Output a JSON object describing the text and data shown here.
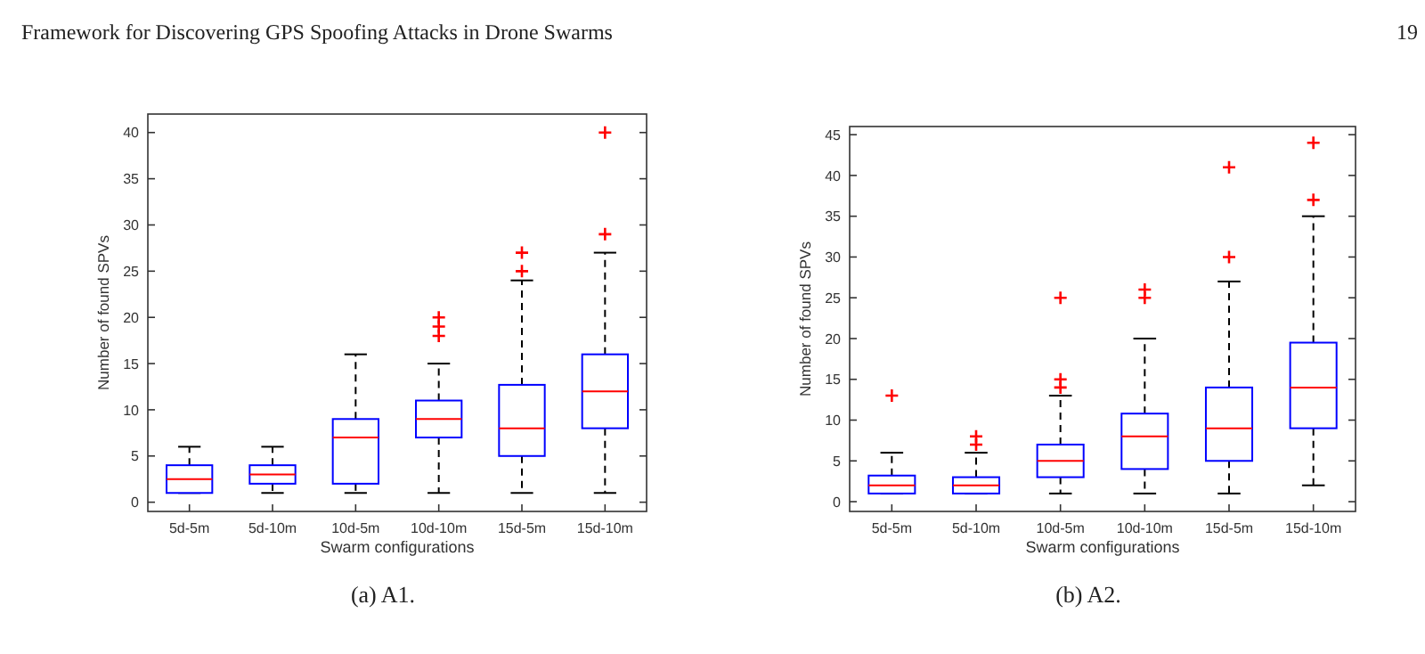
{
  "chart_data": [
    {
      "type": "box",
      "title": "(a) A1.",
      "xlabel": "Swarm configurations",
      "ylabel": "Number of found SPVs",
      "annotations": [
        "Framework for Discovering GPS Spoofing Attacks in Drone Swarms",
        "19"
      ],
      "categories": [
        "5d-5m",
        "5d-10m",
        "10d-5m",
        "10d-10m",
        "15d-5m",
        "15d-10m"
      ],
      "ylim": [
        -1,
        42
      ],
      "yticks": [
        0,
        5,
        10,
        15,
        20,
        25,
        30,
        35,
        40
      ],
      "marker": "cross",
      "boxes": [
        {
          "low": 1,
          "q1": 1,
          "median": 2.5,
          "q3": 4,
          "high": 6
        },
        {
          "low": 1,
          "q1": 2,
          "median": 3,
          "q3": 4,
          "high": 6
        },
        {
          "low": 1,
          "q1": 2,
          "median": 7,
          "q3": 9,
          "high": 16
        },
        {
          "low": 1,
          "q1": 7,
          "median": 9,
          "q3": 11,
          "high": 15,
          "outliers": [
            18,
            19,
            20
          ]
        },
        {
          "low": 1,
          "q1": 5,
          "median": 8,
          "q3": 12.7,
          "high": 24,
          "outliers": [
            25,
            27
          ]
        },
        {
          "low": 1,
          "q1": 8,
          "median": 12,
          "q3": 16,
          "high": 27,
          "outliers": [
            29,
            40
          ]
        }
      ]
    },
    {
      "type": "box",
      "title": "(b) A2.",
      "xlabel": "Swarm configurations",
      "ylabel": "Number of found SPVs",
      "categories": [
        "5d-5m",
        "5d-10m",
        "10d-5m",
        "10d-10m",
        "15d-5m",
        "15d-10m"
      ],
      "ylim": [
        -1.2,
        46
      ],
      "yticks": [
        0,
        5,
        10,
        15,
        20,
        25,
        30,
        35,
        40,
        45
      ],
      "marker": "cross",
      "boxes": [
        {
          "low": 1,
          "q1": 1,
          "median": 2,
          "q3": 3.2,
          "high": 6,
          "outliers": [
            13
          ]
        },
        {
          "low": 1,
          "q1": 1,
          "median": 2,
          "q3": 3,
          "high": 6,
          "outliers": [
            7,
            8
          ]
        },
        {
          "low": 1,
          "q1": 3,
          "median": 5,
          "q3": 7,
          "high": 13,
          "outliers": [
            14,
            15,
            25
          ]
        },
        {
          "low": 1,
          "q1": 4,
          "median": 8,
          "q3": 10.8,
          "high": 20,
          "outliers": [
            25,
            26
          ]
        },
        {
          "low": 1,
          "q1": 5,
          "median": 9,
          "q3": 14,
          "high": 27,
          "outliers": [
            30,
            41
          ]
        },
        {
          "low": 2,
          "q1": 9,
          "median": 14,
          "q3": 19.5,
          "high": 35,
          "outliers": [
            37,
            44
          ]
        }
      ]
    }
  ]
}
